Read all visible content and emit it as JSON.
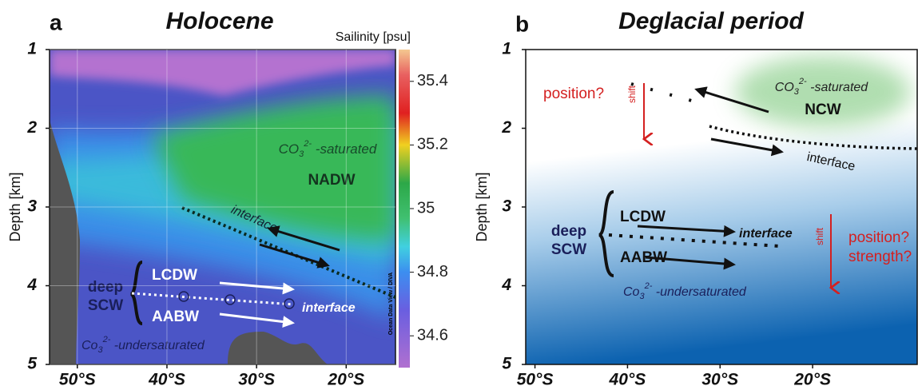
{
  "chart_data": [
    {
      "type": "section",
      "panel": "a",
      "title": "Holocene",
      "ylabel": "Depth [km]",
      "ylim": [
        5,
        1
      ],
      "yticks": [
        1,
        2,
        3,
        4,
        5
      ],
      "xlim": [
        -53.1,
        -14.5
      ],
      "xticks": [
        {
          "value": -50,
          "label": "50°S"
        },
        {
          "value": -40,
          "label": "40°S"
        },
        {
          "value": -30,
          "label": "30°S"
        },
        {
          "value": -20,
          "label": "20°S"
        }
      ],
      "grid": true,
      "colorbar": {
        "label": "Sailinity [psu]",
        "lim": [
          34.5,
          35.5
        ],
        "ticks": [
          34.6,
          34.8,
          35,
          35.2,
          35.4
        ]
      },
      "credit": "Ocean Data View / DIVA",
      "annotations": {
        "saturated": {
          "ion": "CO",
          "sub": "3",
          "sup": "2-",
          "text": " -saturated"
        },
        "water_mass": "NADW",
        "interface_upper": "interface",
        "deep": "deep",
        "scw": "SCW",
        "lcdw": "LCDW",
        "aabw": "AABW",
        "interface_lower": "interface",
        "undersaturated": {
          "ion": "Co",
          "sub": "3",
          "sup": "2-",
          "text": " -undersaturated"
        }
      }
    },
    {
      "type": "section",
      "panel": "b",
      "title": "Deglacial period",
      "ylabel": "Depth [km]",
      "ylim": [
        5,
        1
      ],
      "yticks": [
        1,
        2,
        3,
        4,
        5
      ],
      "xlim": [
        -51,
        -8.7
      ],
      "xticks": [
        {
          "value": -50,
          "label": "50°S"
        },
        {
          "value": -40,
          "label": "40°S"
        },
        {
          "value": -30,
          "label": "30°S"
        },
        {
          "value": -20,
          "label": "20°S"
        }
      ],
      "grid": false,
      "annotations": {
        "saturated": {
          "ion": "CO",
          "sub": "3",
          "sup": "2-",
          "text": " -saturated"
        },
        "water_mass": "NCW",
        "interface_upper": "interface",
        "position_upper": "position?",
        "shift_upper": "shift",
        "deep": "deep",
        "scw": "SCW",
        "lcdw": "LCDW",
        "aabw": "AABW",
        "interface_lower": "interface",
        "position_lower": "position?",
        "strength": "strength?",
        "shift_lower": "shift",
        "undersaturated": {
          "ion": "Co",
          "sub": "3",
          "sup": "2-",
          "text": " -undersaturated"
        }
      }
    }
  ]
}
